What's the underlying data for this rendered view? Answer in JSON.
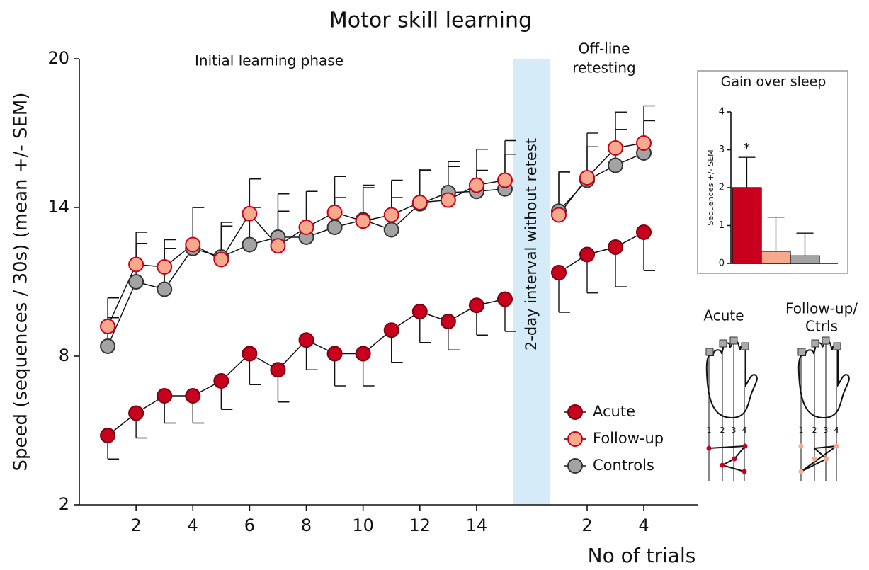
{
  "chart_data": [
    {
      "type": "line",
      "title": "Motor skill learning",
      "ylabel": "Speed (sequences / 30s) (mean +/- SEM)",
      "annotation": "Initial learning phase",
      "x": [
        1,
        2,
        3,
        4,
        5,
        6,
        7,
        8,
        9,
        10,
        11,
        12,
        13,
        14,
        15
      ],
      "xlim": [
        0,
        15.3
      ],
      "xticks": [
        2,
        4,
        6,
        8,
        10,
        12,
        14
      ],
      "ylim": [
        2,
        20
      ],
      "yticks": [
        2,
        8,
        14,
        20
      ],
      "legend": "lower right",
      "series": [
        {
          "name": "Acute",
          "color": "#c8001e",
          "edge_color": "#7a0010",
          "error_side": "lower",
          "values": [
            4.8,
            5.7,
            6.4,
            6.4,
            7.0,
            8.1,
            7.45,
            8.65,
            8.1,
            8.1,
            9.05,
            9.8,
            9.4,
            10.05,
            10.3
          ],
          "errors": [
            0.95,
            1.0,
            1.1,
            1.1,
            1.15,
            1.25,
            1.3,
            1.2,
            1.3,
            1.3,
            1.3,
            1.25,
            1.15,
            1.2,
            1.3
          ]
        },
        {
          "name": "Follow-up",
          "color": "#f7a98c",
          "edge_color": "#c8001e",
          "error_side": "upper",
          "values": [
            9.2,
            11.7,
            11.6,
            12.5,
            11.9,
            13.75,
            12.45,
            13.2,
            13.8,
            13.45,
            13.7,
            14.2,
            14.3,
            14.9,
            15.1
          ],
          "errors": [
            1.15,
            1.3,
            1.1,
            1.5,
            1.5,
            1.4,
            1.4,
            1.45,
            1.45,
            1.45,
            1.4,
            1.35,
            1.55,
            1.45,
            1.6
          ]
        },
        {
          "name": "Controls",
          "color": "#a3a3a3",
          "edge_color": "#333333",
          "error_side": "upper",
          "values": [
            8.4,
            11.0,
            10.7,
            12.35,
            12.0,
            12.5,
            12.8,
            12.8,
            13.2,
            13.5,
            13.1,
            14.15,
            14.6,
            14.65,
            14.75
          ],
          "errors": [
            1.15,
            1.55,
            1.65,
            1.65,
            1.25,
            1.5,
            1.75,
            1.85,
            1.2,
            1.3,
            1.3,
            1.35,
            1.05,
            0.85,
            1.4
          ]
        }
      ]
    },
    {
      "type": "line",
      "xlabel": "No of trials",
      "annotation": [
        "Off-line",
        "retesting"
      ],
      "band_label": "2-day interval without retest",
      "band_color": "#d5ebf7",
      "x": [
        1,
        2,
        3,
        4
      ],
      "xlim": [
        0.7,
        5.9
      ],
      "xticks": [
        2,
        4
      ],
      "series": [
        {
          "color": "#c8001e",
          "edge_color": "#7a0010",
          "error_side": "lower",
          "values": [
            11.37,
            12.1,
            12.4,
            13.0
          ],
          "errors": [
            1.6,
            1.55,
            1.6,
            1.55
          ]
        },
        {
          "color": "#f7a98c",
          "edge_color": "#c8001e",
          "error_side": "upper",
          "values": [
            13.7,
            15.2,
            16.4,
            16.6
          ],
          "errors": [
            1.7,
            1.8,
            1.45,
            1.5
          ]
        },
        {
          "color": "#a3a3a3",
          "edge_color": "#333333",
          "error_side": "upper",
          "values": [
            13.85,
            15.1,
            15.7,
            16.2
          ],
          "errors": [
            1.6,
            1.35,
            1.45,
            1.3
          ]
        }
      ]
    },
    {
      "type": "bar",
      "title": "Gain over sleep",
      "ylabel": "Sequences +/- SEM",
      "categories": [
        null,
        null,
        null
      ],
      "values": [
        2.0,
        0.32,
        0.2
      ],
      "errors": [
        0.8,
        0.9,
        0.6
      ],
      "colors": [
        "#c8001e",
        "#f7a98c",
        "#a3a3a3"
      ],
      "ylim": [
        0,
        4
      ],
      "yticks": [
        0,
        1,
        2,
        3,
        4
      ],
      "annotations": [
        {
          "text": "*",
          "category": 0
        }
      ]
    }
  ],
  "hand_diagrams": [
    {
      "label": [
        "Acute"
      ],
      "digits": [
        "1",
        "2",
        "3",
        "4"
      ]
    },
    {
      "label": [
        "Follow-up/",
        "Ctrls"
      ],
      "digits": [
        "1",
        "2",
        "3",
        "4"
      ]
    }
  ]
}
